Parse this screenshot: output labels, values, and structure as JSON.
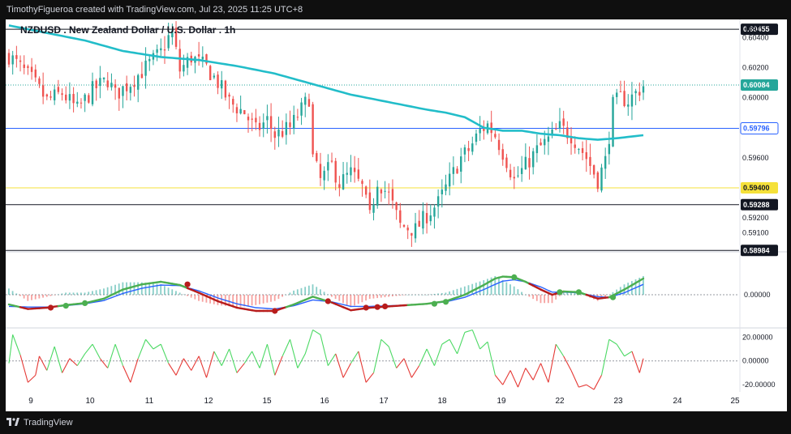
{
  "attribution": "TimothyFigueroa created with TradingView.com, Jul 23, 2025 11:25 UTC+8",
  "footer": {
    "brand": "TradingView"
  },
  "chart_data": {
    "type": "candlestick",
    "title": "NZDUSD . New Zealand Dollar / U.S. Dollar . 1h",
    "currency": "USD",
    "ylim": [
      0.5898,
      0.6052
    ],
    "y_ticks": [
      "0.60400",
      "0.60200",
      "0.60000",
      "0.59600",
      "0.59200",
      "0.59100"
    ],
    "x_ticks": [
      "9",
      "10",
      "11",
      "12",
      "15",
      "16",
      "17",
      "18",
      "19",
      "22",
      "23",
      "24",
      "25"
    ],
    "price_labels": [
      {
        "value": "0.60455",
        "style": "black"
      },
      {
        "value": "0.60084",
        "style": "teal"
      },
      {
        "value": "0.59796",
        "style": "blue"
      },
      {
        "value": "0.59400",
        "style": "yellow"
      },
      {
        "value": "0.59288",
        "style": "black"
      },
      {
        "value": "0.58984",
        "style": "black"
      }
    ],
    "horizontal_lines": [
      {
        "value": 0.60455,
        "color": "#131722"
      },
      {
        "value": 0.59796,
        "color": "#2962ff"
      },
      {
        "value": 0.594,
        "color": "#f5e13a"
      },
      {
        "value": 0.59288,
        "color": "#131722"
      },
      {
        "value": 0.58984,
        "color": "#131722"
      }
    ],
    "last_price_line": {
      "value": 0.60084,
      "color": "#26a69a"
    },
    "close_path": [
      [
        0,
        0.6028
      ],
      [
        6,
        0.6012
      ],
      [
        10,
        0.5998
      ],
      [
        14,
        0.6003
      ],
      [
        18,
        0.5992
      ],
      [
        22,
        0.6005
      ],
      [
        26,
        0.6012
      ],
      [
        28,
        0.6002
      ],
      [
        32,
        0.601
      ],
      [
        36,
        0.602
      ],
      [
        40,
        0.603
      ],
      [
        42,
        0.604
      ],
      [
        43,
        0.6043
      ],
      [
        45,
        0.6018
      ],
      [
        48,
        0.6027
      ],
      [
        52,
        0.602
      ],
      [
        55,
        0.601
      ],
      [
        58,
        0.5997
      ],
      [
        62,
        0.599
      ],
      [
        65,
        0.5978
      ],
      [
        68,
        0.5985
      ],
      [
        70,
        0.5975
      ],
      [
        74,
        0.598
      ],
      [
        77,
        0.5992
      ],
      [
        79,
        0.6
      ],
      [
        80,
        0.596
      ],
      [
        82,
        0.5945
      ],
      [
        85,
        0.5955
      ],
      [
        87,
        0.5943
      ],
      [
        90,
        0.595
      ],
      [
        93,
        0.594
      ],
      [
        95,
        0.592
      ],
      [
        97,
        0.5945
      ],
      [
        100,
        0.5935
      ],
      [
        103,
        0.5915
      ],
      [
        107,
        0.5912
      ],
      [
        110,
        0.5922
      ],
      [
        113,
        0.593
      ],
      [
        116,
        0.5945
      ],
      [
        119,
        0.596
      ],
      [
        121,
        0.5965
      ],
      [
        124,
        0.5978
      ],
      [
        126,
        0.5982
      ],
      [
        128,
        0.5975
      ],
      [
        131,
        0.5958
      ],
      [
        133,
        0.5945
      ],
      [
        136,
        0.5955
      ],
      [
        139,
        0.5965
      ],
      [
        142,
        0.5972
      ],
      [
        145,
        0.598
      ],
      [
        148,
        0.5975
      ],
      [
        150,
        0.5968
      ],
      [
        152,
        0.596
      ],
      [
        154,
        0.595
      ],
      [
        155,
        0.5945
      ],
      [
        157,
        0.5958
      ],
      [
        158,
        0.5975
      ],
      [
        159,
        0.5995
      ],
      [
        161,
        0.6
      ],
      [
        163,
        0.5998
      ],
      [
        165,
        0.6003
      ],
      [
        167,
        0.6008
      ]
    ],
    "ma_path": [
      [
        0,
        0.6048
      ],
      [
        10,
        0.6043
      ],
      [
        20,
        0.6038
      ],
      [
        30,
        0.6031
      ],
      [
        40,
        0.6027
      ],
      [
        50,
        0.6025
      ],
      [
        60,
        0.6021
      ],
      [
        70,
        0.6016
      ],
      [
        80,
        0.6009
      ],
      [
        90,
        0.6002
      ],
      [
        100,
        0.5997
      ],
      [
        110,
        0.5992
      ],
      [
        115,
        0.599
      ],
      [
        120,
        0.5987
      ],
      [
        125,
        0.598
      ],
      [
        130,
        0.5978
      ],
      [
        135,
        0.5978
      ],
      [
        140,
        0.5976
      ],
      [
        145,
        0.5975
      ],
      [
        150,
        0.5973
      ],
      [
        155,
        0.5972
      ],
      [
        160,
        0.5973
      ],
      [
        167,
        0.5975
      ]
    ],
    "macd": {
      "zero_label": "0.00000",
      "macd_path": [
        [
          0,
          -1.5
        ],
        [
          5,
          -2.2
        ],
        [
          10,
          -2.0
        ],
        [
          15,
          -1.6
        ],
        [
          20,
          -1.3
        ],
        [
          25,
          -0.6
        ],
        [
          30,
          0.8
        ],
        [
          35,
          1.6
        ],
        [
          40,
          2.0
        ],
        [
          45,
          1.5
        ],
        [
          50,
          0.3
        ],
        [
          55,
          -1.0
        ],
        [
          60,
          -2.0
        ],
        [
          65,
          -2.5
        ],
        [
          70,
          -2.5
        ],
        [
          75,
          -1.5
        ],
        [
          80,
          -0.3
        ],
        [
          85,
          -1.2
        ],
        [
          90,
          -2.4
        ],
        [
          95,
          -2.0
        ],
        [
          100,
          -1.8
        ],
        [
          105,
          -1.6
        ],
        [
          110,
          -1.4
        ],
        [
          115,
          -1.0
        ],
        [
          120,
          0.0
        ],
        [
          125,
          1.5
        ],
        [
          128,
          2.5
        ],
        [
          130,
          2.8
        ],
        [
          133,
          2.7
        ],
        [
          136,
          2.0
        ],
        [
          140,
          0.8
        ],
        [
          143,
          0.0
        ],
        [
          146,
          0.5
        ],
        [
          150,
          0.4
        ],
        [
          155,
          -0.6
        ],
        [
          158,
          -0.4
        ],
        [
          162,
          0.8
        ],
        [
          167,
          2.5
        ]
      ],
      "signal_path": [
        [
          0,
          -1.8
        ],
        [
          5,
          -1.9
        ],
        [
          10,
          -1.9
        ],
        [
          15,
          -1.7
        ],
        [
          20,
          -1.4
        ],
        [
          25,
          -0.9
        ],
        [
          30,
          0.2
        ],
        [
          35,
          1.0
        ],
        [
          40,
          1.5
        ],
        [
          45,
          1.4
        ],
        [
          50,
          0.6
        ],
        [
          55,
          -0.5
        ],
        [
          60,
          -1.4
        ],
        [
          65,
          -2.0
        ],
        [
          70,
          -2.2
        ],
        [
          75,
          -1.7
        ],
        [
          80,
          -0.8
        ],
        [
          85,
          -1.1
        ],
        [
          90,
          -1.8
        ],
        [
          95,
          -1.8
        ],
        [
          100,
          -1.7
        ],
        [
          105,
          -1.6
        ],
        [
          110,
          -1.4
        ],
        [
          115,
          -1.1
        ],
        [
          120,
          -0.4
        ],
        [
          125,
          0.8
        ],
        [
          128,
          1.6
        ],
        [
          130,
          2.1
        ],
        [
          133,
          2.3
        ],
        [
          136,
          2.0
        ],
        [
          140,
          1.2
        ],
        [
          143,
          0.4
        ],
        [
          146,
          0.4
        ],
        [
          150,
          0.3
        ],
        [
          155,
          -0.3
        ],
        [
          158,
          -0.4
        ],
        [
          162,
          0.3
        ],
        [
          167,
          1.6
        ]
      ],
      "cross_points": [
        [
          11,
          -2.0
        ],
        [
          15,
          -1.7
        ],
        [
          20,
          -1.3
        ],
        [
          47,
          1.6
        ],
        [
          70,
          -2.5
        ],
        [
          84,
          -1.0
        ],
        [
          94,
          -2.0
        ],
        [
          97,
          -1.9
        ],
        [
          99,
          -1.8
        ],
        [
          112,
          -1.4
        ],
        [
          115,
          -1.1
        ],
        [
          133,
          2.7
        ],
        [
          145,
          0.4
        ],
        [
          150,
          0.4
        ],
        [
          159,
          -0.4
        ]
      ]
    },
    "oscillator": {
      "ticks": [
        "20.00000",
        "0.00000",
        "-20.00000"
      ],
      "range": [
        -26,
        27
      ],
      "path": [
        [
          0,
          -2
        ],
        [
          1,
          22
        ],
        [
          3,
          5
        ],
        [
          5,
          -18
        ],
        [
          7,
          -12
        ],
        [
          8,
          4
        ],
        [
          10,
          -8
        ],
        [
          12,
          12
        ],
        [
          14,
          -10
        ],
        [
          16,
          2
        ],
        [
          18,
          -4
        ],
        [
          20,
          6
        ],
        [
          22,
          14
        ],
        [
          24,
          2
        ],
        [
          26,
          -6
        ],
        [
          28,
          14
        ],
        [
          30,
          -4
        ],
        [
          32,
          -18
        ],
        [
          34,
          2
        ],
        [
          36,
          18
        ],
        [
          38,
          10
        ],
        [
          40,
          14
        ],
        [
          42,
          -2
        ],
        [
          44,
          -12
        ],
        [
          46,
          2
        ],
        [
          48,
          -8
        ],
        [
          50,
          4
        ],
        [
          52,
          -14
        ],
        [
          54,
          8
        ],
        [
          56,
          -4
        ],
        [
          58,
          10
        ],
        [
          60,
          -10
        ],
        [
          62,
          -2
        ],
        [
          64,
          8
        ],
        [
          66,
          -6
        ],
        [
          68,
          14
        ],
        [
          70,
          -12
        ],
        [
          72,
          4
        ],
        [
          74,
          18
        ],
        [
          76,
          -6
        ],
        [
          78,
          6
        ],
        [
          80,
          26
        ],
        [
          82,
          22
        ],
        [
          84,
          -4
        ],
        [
          86,
          6
        ],
        [
          88,
          -14
        ],
        [
          90,
          -2
        ],
        [
          92,
          8
        ],
        [
          94,
          -18
        ],
        [
          96,
          -10
        ],
        [
          98,
          18
        ],
        [
          100,
          12
        ],
        [
          102,
          -6
        ],
        [
          104,
          2
        ],
        [
          106,
          -14
        ],
        [
          108,
          -4
        ],
        [
          110,
          10
        ],
        [
          112,
          -4
        ],
        [
          114,
          14
        ],
        [
          116,
          18
        ],
        [
          118,
          6
        ],
        [
          120,
          24
        ],
        [
          122,
          26
        ],
        [
          124,
          10
        ],
        [
          126,
          16
        ],
        [
          128,
          -12
        ],
        [
          130,
          -20
        ],
        [
          132,
          -8
        ],
        [
          134,
          -22
        ],
        [
          136,
          -6
        ],
        [
          138,
          -16
        ],
        [
          140,
          -2
        ],
        [
          142,
          -18
        ],
        [
          144,
          14
        ],
        [
          146,
          4
        ],
        [
          148,
          -8
        ],
        [
          150,
          -22
        ],
        [
          152,
          -20
        ],
        [
          154,
          -24
        ],
        [
          156,
          -12
        ],
        [
          158,
          18
        ],
        [
          160,
          14
        ],
        [
          162,
          4
        ],
        [
          164,
          8
        ],
        [
          166,
          -10
        ],
        [
          167,
          2
        ]
      ]
    }
  }
}
